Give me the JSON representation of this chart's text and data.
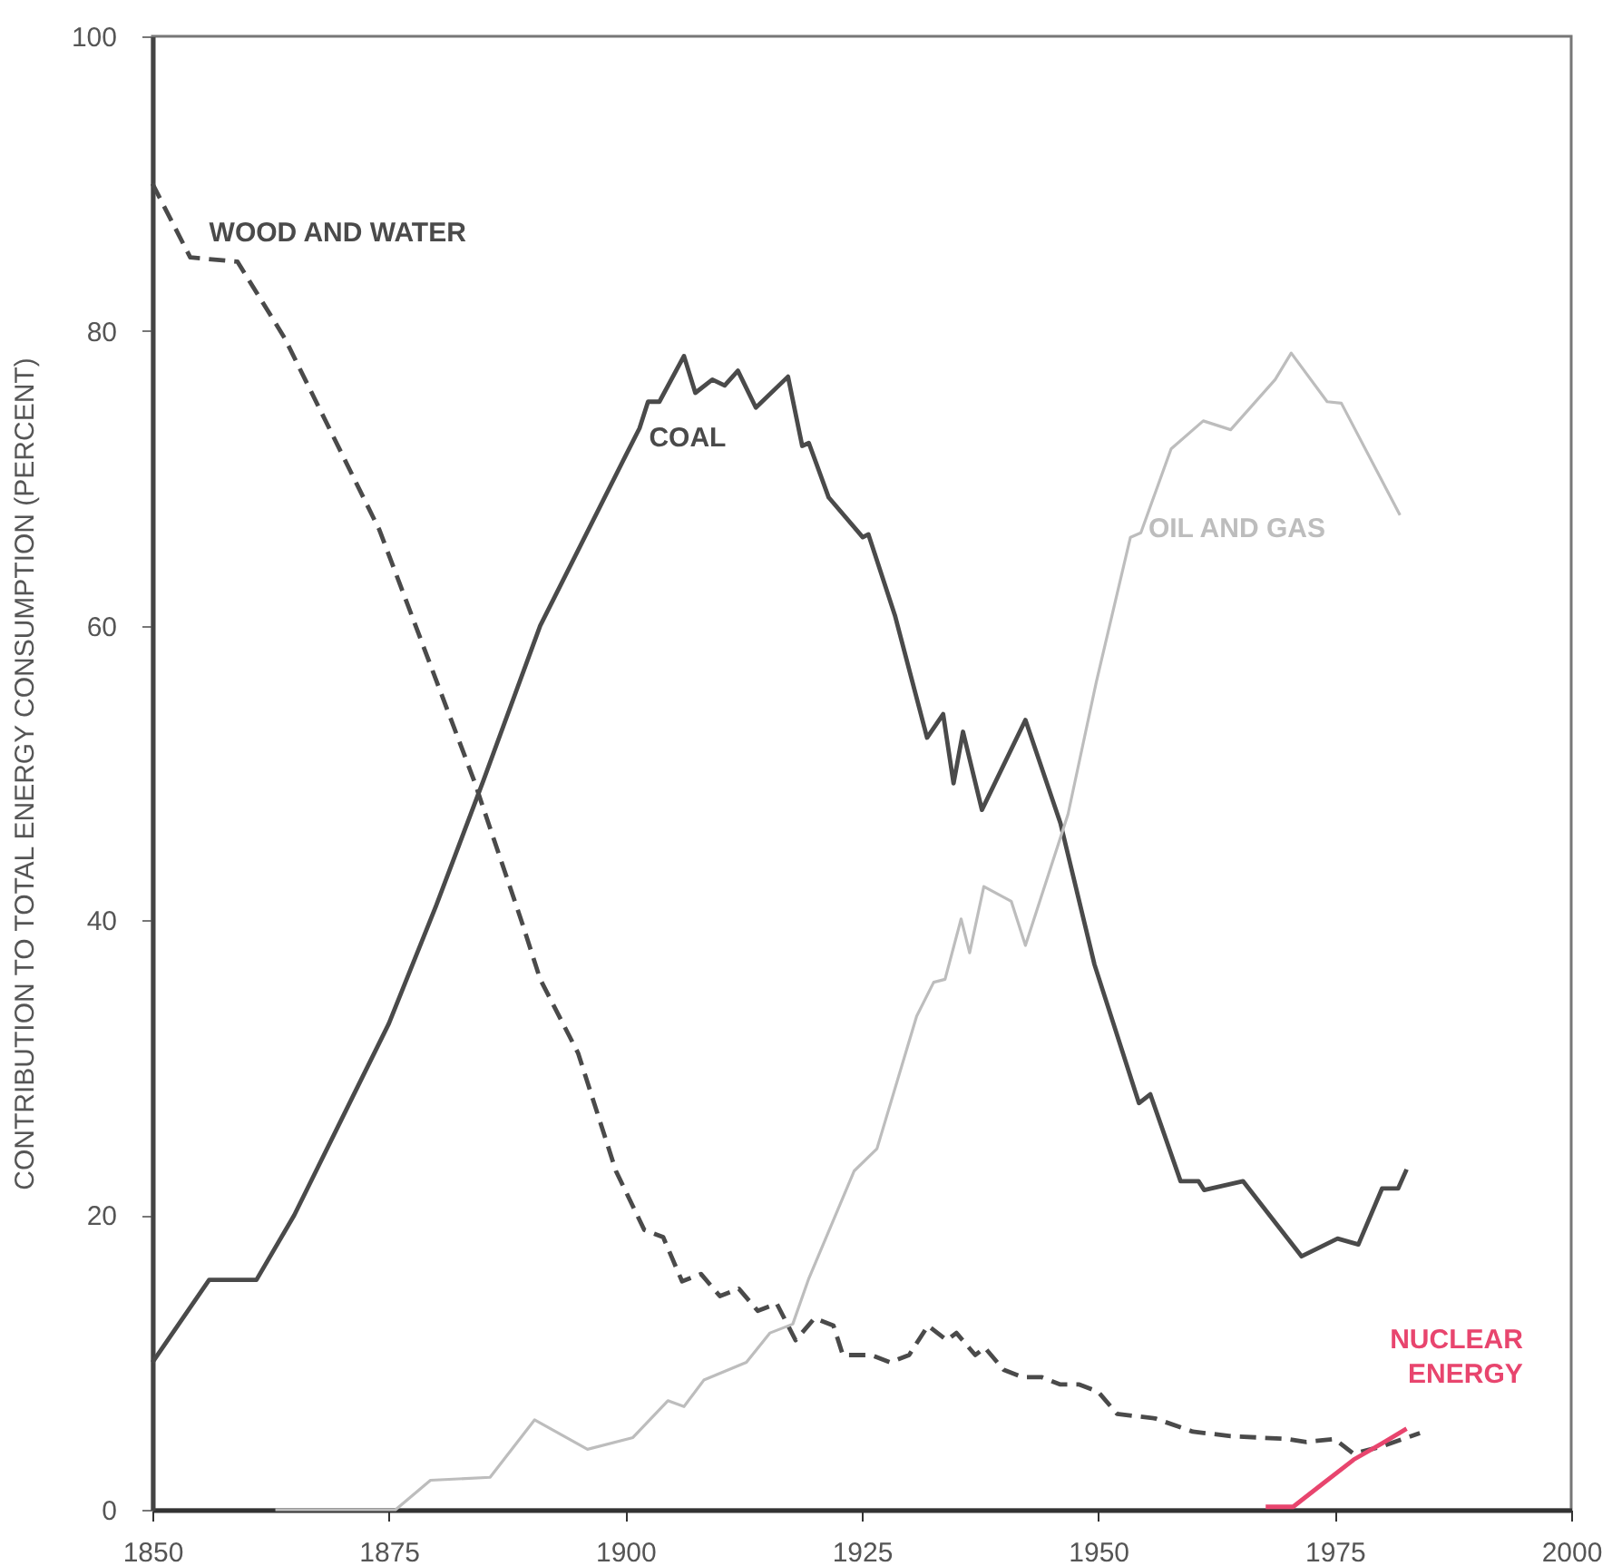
{
  "chart_data": {
    "type": "line",
    "ylabel": "CONTRIBUTION TO TOTAL ENERGY CONSUMPTION (PERCENT)",
    "xlim": [
      1850,
      2000
    ],
    "xticks": [
      1850,
      1875,
      1900,
      1925,
      1950,
      1975,
      2000
    ],
    "ylim": [
      0,
      100
    ],
    "yticks": [
      0,
      20,
      40,
      60,
      80,
      100
    ],
    "grid": false,
    "marker": "none",
    "series": [
      {
        "name": "WOOD AND WATER",
        "color": "#4a4a4a",
        "line_style": "dashed",
        "x": [
          1850,
          1854,
          1859,
          1864,
          1869,
          1874,
          1879,
          1884,
          1889,
          1891,
          1895,
          1899,
          1902,
          1904,
          1906,
          1908,
          1910,
          1912,
          1914,
          1916,
          1918,
          1920,
          1922,
          1923,
          1926,
          1928,
          1930,
          1932,
          1934,
          1935,
          1937,
          1938,
          1940,
          1942,
          1944,
          1946,
          1948,
          1950,
          1952,
          1956,
          1960,
          1964,
          1970,
          1972,
          1975,
          1977,
          1980,
          1984
        ],
        "values": [
          90,
          85,
          84.7,
          79.5,
          73,
          66.5,
          58,
          49.5,
          40,
          36,
          31,
          23,
          19,
          18.5,
          15.5,
          16,
          14.5,
          15,
          13.5,
          14,
          11.5,
          13,
          12.5,
          10.5,
          10.5,
          10,
          10.5,
          12.5,
          11.5,
          12,
          10.5,
          11,
          9.5,
          9,
          9,
          8.5,
          8.5,
          8,
          6.5,
          6.2,
          5.3,
          5,
          4.8,
          4.6,
          4.8,
          3.8,
          4.3,
          5.2
        ]
      },
      {
        "name": "COAL",
        "color": "#4a4a4a",
        "line_style": "solid",
        "x": [
          1850,
          1856,
          1861,
          1865,
          1870,
          1875,
          1880,
          1885,
          1891,
          1900,
          1901.5,
          1902.4,
          1903.6,
          1906.2,
          1907.4,
          1909.2,
          1910.5,
          1911.9,
          1913.8,
          1917.2,
          1918.7,
          1919.4,
          1921.5,
          1925.1,
          1925.7,
          1928.5,
          1931.9,
          1933.6,
          1934.7,
          1935.7,
          1937.7,
          1942.3,
          1946,
          1949.6,
          1954.3,
          1955.5,
          1958.7,
          1960.6,
          1961.2,
          1965.3,
          1971.5,
          1975.3,
          1977.5,
          1980,
          1981.7,
          1982.6
        ],
        "values": [
          10,
          15.6,
          15.6,
          20,
          26.5,
          33,
          41,
          49.5,
          60,
          71.5,
          73.4,
          75.2,
          75.2,
          78.3,
          75.8,
          76.7,
          76.3,
          77.3,
          74.8,
          76.9,
          72.2,
          72.4,
          68.7,
          66,
          66.2,
          60.7,
          52.4,
          54,
          49.3,
          52.8,
          47.5,
          53.6,
          46.6,
          37,
          27.6,
          28.2,
          22.3,
          22.3,
          21.7,
          22.3,
          17.2,
          18.4,
          18,
          21.8,
          21.8,
          23.1
        ]
      },
      {
        "name": "OIL AND GAS",
        "color": "#bdbdbd",
        "line_style": "solid",
        "x": [
          1863,
          1875.7,
          1879.4,
          1885.7,
          1890.4,
          1896,
          1900.8,
          1904.5,
          1906.2,
          1908.3,
          1912.8,
          1915.3,
          1917.7,
          1919.4,
          1924.2,
          1926.6,
          1930.8,
          1932.6,
          1933.8,
          1935.5,
          1936.4,
          1937.9,
          1940.8,
          1942.3,
          1946.8,
          1949.8,
          1953.4,
          1954.5,
          1957.7,
          1961.1,
          1964,
          1968.7,
          1970.4,
          1974.2,
          1975.7,
          1981.9
        ],
        "values": [
          0,
          0,
          2,
          2.2,
          6.1,
          4.1,
          4.9,
          7.4,
          7,
          8.8,
          10,
          12,
          12.6,
          15.7,
          23,
          24.5,
          33.5,
          35.8,
          36,
          40.1,
          37.8,
          42.3,
          41.3,
          38.3,
          47.2,
          56.2,
          66,
          66.3,
          72,
          73.9,
          73.3,
          76.7,
          78.5,
          75.2,
          75.1,
          67.5
        ]
      },
      {
        "name": "NUCLEAR ENERGY",
        "color": "#e8456e",
        "line_style": "solid",
        "x": [
          1967.7,
          1970.6,
          1973.8,
          1977,
          1980,
          1982.6
        ],
        "values": [
          0.2,
          0.2,
          1.8,
          3.4,
          4.5,
          5.5
        ]
      }
    ]
  }
}
